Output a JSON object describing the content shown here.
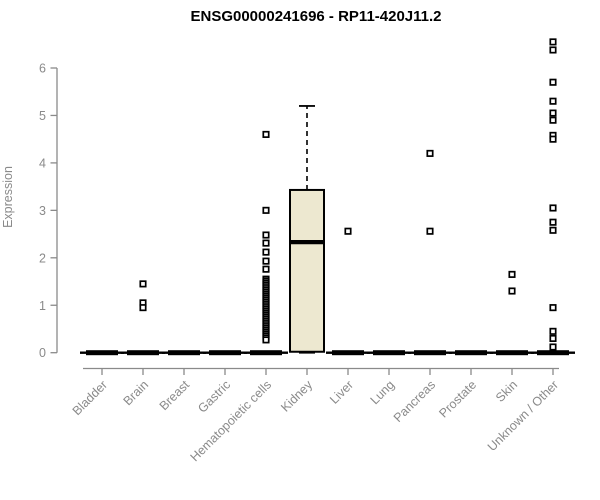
{
  "chart_data": {
    "type": "boxplot",
    "title": "ENSG00000241696 - RP11-420J11.2",
    "xlabel": "",
    "ylabel": "Expression",
    "ylim": [
      0,
      6.6
    ],
    "yticks": [
      0,
      1,
      2,
      3,
      4,
      5,
      6
    ],
    "grid": false,
    "legend": null,
    "colors": {
      "box_fill": "#ede8d0",
      "box_stroke": "#000000",
      "median": "#000000",
      "whisker": "#000000",
      "outlier_stroke": "#000000",
      "outlier_fill": "#ffffff",
      "axis": "#8a8a8a",
      "tick_text": "#8a8a8a",
      "title_text": "#000000",
      "background": "#ffffff"
    },
    "categories": [
      "Bladder",
      "Brain",
      "Breast",
      "Gastric",
      "Hematopoietic cells",
      "Kidney",
      "Liver",
      "Lung",
      "Pancreas",
      "Prostate",
      "Skin",
      "Unknown / Other"
    ],
    "boxes": [
      {
        "category": "Bladder",
        "min": 0,
        "q1": 0,
        "median": 0,
        "q3": 0,
        "max": 0,
        "outliers": []
      },
      {
        "category": "Brain",
        "min": 0,
        "q1": 0,
        "median": 0,
        "q3": 0,
        "max": 0,
        "outliers": [
          1.45,
          1.05,
          0.95
        ]
      },
      {
        "category": "Breast",
        "min": 0,
        "q1": 0,
        "median": 0,
        "q3": 0,
        "max": 0,
        "outliers": []
      },
      {
        "category": "Gastric",
        "min": 0,
        "q1": 0,
        "median": 0,
        "q3": 0,
        "max": 0,
        "outliers": []
      },
      {
        "category": "Hematopoietic cells",
        "min": 0,
        "q1": 0,
        "median": 0,
        "q3": 0,
        "max": 0,
        "outliers": [
          4.6,
          3.0,
          2.48,
          2.31,
          2.12,
          1.93,
          1.76,
          1.55,
          1.51,
          1.47,
          1.43,
          1.39,
          1.35,
          1.31,
          1.27,
          1.23,
          1.19,
          1.15,
          1.11,
          1.07,
          1.03,
          0.99,
          0.95,
          0.91,
          0.87,
          0.83,
          0.79,
          0.75,
          0.71,
          0.67,
          0.63,
          0.59,
          0.55,
          0.51,
          0.47,
          0.43,
          0.39,
          0.35,
          0.31,
          0.27
        ]
      },
      {
        "category": "Kidney",
        "min": 0,
        "q1": 0.02,
        "median": 2.33,
        "q3": 3.43,
        "max": 5.2,
        "outliers": []
      },
      {
        "category": "Liver",
        "min": 0,
        "q1": 0,
        "median": 0,
        "q3": 0,
        "max": 0,
        "outliers": [
          2.56
        ]
      },
      {
        "category": "Lung",
        "min": 0,
        "q1": 0,
        "median": 0,
        "q3": 0,
        "max": 0,
        "outliers": []
      },
      {
        "category": "Pancreas",
        "min": 0,
        "q1": 0,
        "median": 0,
        "q3": 0,
        "max": 0,
        "outliers": [
          4.2,
          2.56
        ]
      },
      {
        "category": "Prostate",
        "min": 0,
        "q1": 0,
        "median": 0,
        "q3": 0,
        "max": 0,
        "outliers": []
      },
      {
        "category": "Skin",
        "min": 0,
        "q1": 0,
        "median": 0,
        "q3": 0,
        "max": 0,
        "outliers": [
          1.65,
          1.3
        ]
      },
      {
        "category": "Unknown / Other",
        "min": 0,
        "q1": 0,
        "median": 0,
        "q3": 0,
        "max": 0,
        "outliers": [
          6.55,
          6.38,
          5.7,
          5.3,
          5.05,
          4.9,
          4.58,
          4.5,
          3.05,
          2.75,
          2.58,
          0.95,
          0.45,
          0.3,
          0.12
        ]
      }
    ]
  }
}
